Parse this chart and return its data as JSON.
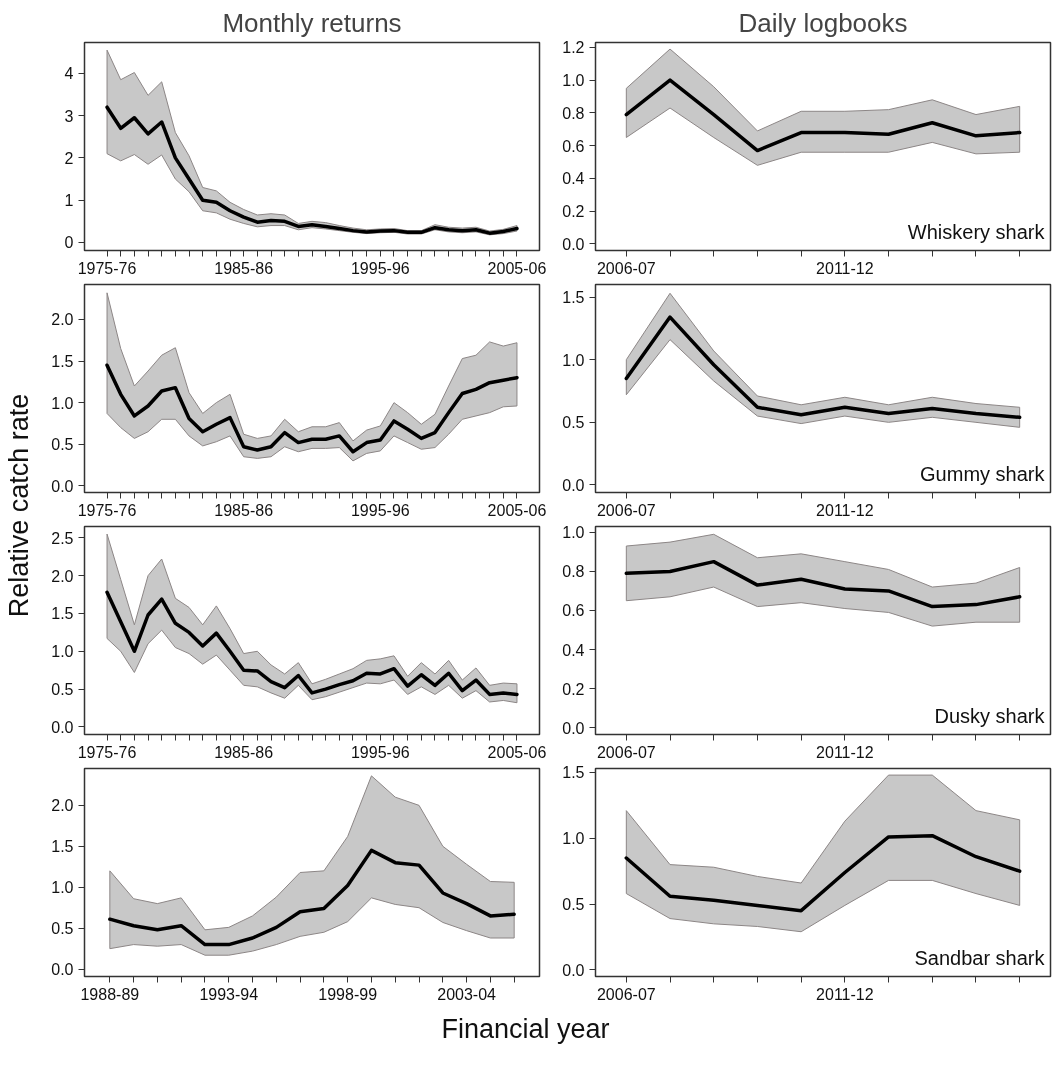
{
  "chart_data": [
    {
      "type": "line",
      "title": "Monthly returns",
      "categories": [
        "1975-76",
        null,
        null,
        null,
        null,
        null,
        null,
        null,
        null,
        null,
        "1985-86",
        null,
        null,
        null,
        null,
        null,
        null,
        null,
        null,
        null,
        "1995-96",
        null,
        null,
        null,
        null,
        null,
        null,
        null,
        null,
        null,
        "2005-06"
      ],
      "ylim": [
        -0.19,
        4.73
      ],
      "yticks": [
        0,
        1,
        2,
        3,
        4
      ],
      "series": [
        {
          "color": "#000000",
          "values": [
            3.2,
            2.7,
            2.95,
            2.57,
            2.85,
            2.0,
            1.5,
            1.0,
            0.95,
            0.75,
            0.6,
            0.48,
            0.52,
            0.5,
            0.38,
            0.42,
            0.38,
            0.33,
            0.28,
            0.25,
            0.27,
            0.28,
            0.24,
            0.24,
            0.35,
            0.3,
            0.28,
            0.3,
            0.22,
            0.26,
            0.33
          ],
          "upper": [
            4.55,
            3.85,
            4.02,
            3.48,
            3.8,
            2.6,
            2.05,
            1.3,
            1.22,
            0.95,
            0.78,
            0.65,
            0.68,
            0.65,
            0.45,
            0.5,
            0.47,
            0.4,
            0.34,
            0.3,
            0.32,
            0.33,
            0.28,
            0.28,
            0.42,
            0.36,
            0.34,
            0.36,
            0.27,
            0.31,
            0.4
          ],
          "lower": [
            2.1,
            1.93,
            2.08,
            1.85,
            2.07,
            1.5,
            1.2,
            0.75,
            0.7,
            0.55,
            0.45,
            0.37,
            0.4,
            0.4,
            0.3,
            0.35,
            0.32,
            0.28,
            0.24,
            0.21,
            0.23,
            0.24,
            0.2,
            0.2,
            0.3,
            0.25,
            0.23,
            0.25,
            0.18,
            0.21,
            0.27
          ]
        }
      ]
    },
    {
      "type": "line",
      "title": "Daily logbooks",
      "annotations": [
        "Whiskery shark"
      ],
      "categories": [
        "2006-07",
        null,
        null,
        null,
        null,
        "2011-12",
        null,
        null,
        null,
        null
      ],
      "ylim": [
        -0.04,
        1.23
      ],
      "yticks": [
        {
          "value": 0,
          "label": "0.0"
        },
        0.2,
        0.4,
        0.6,
        0.8,
        {
          "value": 1,
          "label": "1.0"
        },
        1.2
      ],
      "series": [
        {
          "color": "#000000",
          "values": [
            0.79,
            1.0,
            0.79,
            0.57,
            0.68,
            0.68,
            0.67,
            0.74,
            0.66,
            0.68
          ],
          "upper": [
            0.95,
            1.19,
            0.96,
            0.69,
            0.81,
            0.81,
            0.82,
            0.88,
            0.79,
            0.84
          ],
          "lower": [
            0.65,
            0.83,
            0.65,
            0.48,
            0.56,
            0.56,
            0.56,
            0.62,
            0.55,
            0.56
          ]
        }
      ]
    },
    {
      "type": "line",
      "ylabel": "Relative catch rate",
      "categories": [
        "1975-76",
        null,
        null,
        null,
        null,
        null,
        null,
        null,
        null,
        null,
        "1985-86",
        null,
        null,
        null,
        null,
        null,
        null,
        null,
        null,
        null,
        "1995-96",
        null,
        null,
        null,
        null,
        null,
        null,
        null,
        null,
        null,
        "2005-06"
      ],
      "ylim": [
        -0.08,
        2.42
      ],
      "yticks": [
        {
          "value": 0,
          "label": "0.0"
        },
        0.5,
        {
          "value": 1,
          "label": "1.0"
        },
        1.5,
        {
          "value": 2,
          "label": "2.0"
        }
      ],
      "series": [
        {
          "color": "#000000",
          "values": [
            1.45,
            1.1,
            0.84,
            0.96,
            1.14,
            1.18,
            0.81,
            0.65,
            0.74,
            0.82,
            0.47,
            0.43,
            0.47,
            0.64,
            0.52,
            0.56,
            0.56,
            0.6,
            0.41,
            0.52,
            0.55,
            0.78,
            0.68,
            0.57,
            0.64,
            0.88,
            1.11,
            1.16,
            1.24,
            1.27,
            1.3
          ],
          "upper": [
            2.32,
            1.65,
            1.2,
            1.38,
            1.57,
            1.66,
            1.12,
            0.87,
            1.0,
            1.1,
            0.62,
            0.57,
            0.6,
            0.8,
            0.65,
            0.71,
            0.71,
            0.76,
            0.54,
            0.67,
            0.72,
            1.0,
            0.88,
            0.74,
            0.86,
            1.2,
            1.53,
            1.57,
            1.73,
            1.68,
            1.72
          ],
          "lower": [
            0.87,
            0.7,
            0.57,
            0.65,
            0.8,
            0.8,
            0.6,
            0.48,
            0.53,
            0.6,
            0.35,
            0.33,
            0.35,
            0.47,
            0.41,
            0.45,
            0.45,
            0.46,
            0.3,
            0.39,
            0.42,
            0.6,
            0.52,
            0.44,
            0.46,
            0.62,
            0.8,
            0.84,
            0.88,
            0.95,
            0.96
          ]
        }
      ]
    },
    {
      "type": "line",
      "annotations": [
        "Gummy shark"
      ],
      "categories": [
        "2006-07",
        null,
        null,
        null,
        null,
        "2011-12",
        null,
        null,
        null,
        null
      ],
      "ylim": [
        -0.06,
        1.6
      ],
      "yticks": [
        {
          "value": 0,
          "label": "0.0"
        },
        0.5,
        {
          "value": 1,
          "label": "1.0"
        },
        1.5
      ],
      "series": [
        {
          "color": "#000000",
          "values": [
            0.85,
            1.34,
            0.96,
            0.62,
            0.56,
            0.62,
            0.57,
            0.61,
            0.57,
            0.54
          ],
          "upper": [
            1.0,
            1.53,
            1.07,
            0.71,
            0.64,
            0.7,
            0.64,
            0.7,
            0.65,
            0.62
          ],
          "lower": [
            0.72,
            1.16,
            0.83,
            0.55,
            0.49,
            0.55,
            0.5,
            0.54,
            0.5,
            0.46
          ]
        }
      ]
    },
    {
      "type": "line",
      "categories": [
        "1975-76",
        null,
        null,
        null,
        null,
        null,
        null,
        null,
        null,
        null,
        "1985-86",
        null,
        null,
        null,
        null,
        null,
        null,
        null,
        null,
        null,
        "1995-96",
        null,
        null,
        null,
        null,
        null,
        null,
        null,
        null,
        null,
        "2005-06"
      ],
      "ylim": [
        -0.1,
        2.65
      ],
      "yticks": [
        {
          "value": 0,
          "label": "0.0"
        },
        0.5,
        {
          "value": 1,
          "label": "1.0"
        },
        1.5,
        {
          "value": 2,
          "label": "2.0"
        },
        2.5
      ],
      "series": [
        {
          "color": "#000000",
          "values": [
            1.78,
            1.39,
            1.0,
            1.48,
            1.69,
            1.37,
            1.25,
            1.07,
            1.24,
            1.0,
            0.75,
            0.74,
            0.6,
            0.52,
            0.68,
            0.45,
            0.5,
            0.56,
            0.61,
            0.71,
            0.7,
            0.77,
            0.54,
            0.69,
            0.55,
            0.71,
            0.48,
            0.62,
            0.43,
            0.45,
            0.43
          ],
          "upper": [
            2.55,
            1.95,
            1.35,
            2.0,
            2.22,
            1.7,
            1.58,
            1.35,
            1.6,
            1.3,
            0.97,
            1.0,
            0.82,
            0.7,
            0.85,
            0.57,
            0.63,
            0.7,
            0.77,
            0.88,
            0.9,
            0.94,
            0.67,
            0.85,
            0.7,
            0.88,
            0.62,
            0.78,
            0.55,
            0.58,
            0.57
          ],
          "lower": [
            1.17,
            1.0,
            0.72,
            1.1,
            1.28,
            1.05,
            0.97,
            0.83,
            0.95,
            0.75,
            0.55,
            0.53,
            0.45,
            0.38,
            0.55,
            0.36,
            0.4,
            0.46,
            0.52,
            0.58,
            0.57,
            0.62,
            0.43,
            0.53,
            0.43,
            0.55,
            0.38,
            0.48,
            0.33,
            0.35,
            0.32
          ]
        }
      ]
    },
    {
      "type": "line",
      "annotations": [
        "Dusky shark"
      ],
      "categories": [
        "2006-07",
        null,
        null,
        null,
        null,
        "2011-12",
        null,
        null,
        null,
        null
      ],
      "ylim": [
        -0.035,
        1.03
      ],
      "yticks": [
        {
          "value": 0,
          "label": "0.0"
        },
        0.2,
        0.4,
        0.6,
        0.8,
        {
          "value": 1,
          "label": "1.0"
        }
      ],
      "series": [
        {
          "color": "#000000",
          "values": [
            0.79,
            0.8,
            0.85,
            0.73,
            0.76,
            0.71,
            0.7,
            0.62,
            0.63,
            0.67
          ],
          "upper": [
            0.93,
            0.95,
            0.99,
            0.87,
            0.89,
            0.85,
            0.81,
            0.72,
            0.74,
            0.82
          ],
          "lower": [
            0.65,
            0.67,
            0.72,
            0.62,
            0.64,
            0.61,
            0.59,
            0.52,
            0.54,
            0.54
          ]
        }
      ]
    },
    {
      "type": "line",
      "xlabel": "Financial year",
      "categories": [
        "1988-89",
        null,
        null,
        null,
        null,
        "1993-94",
        null,
        null,
        null,
        null,
        "1998-99",
        null,
        null,
        null,
        null,
        "2003-04",
        null,
        null
      ],
      "ylim": [
        -0.09,
        2.45
      ],
      "yticks": [
        {
          "value": 0,
          "label": "0.0"
        },
        0.5,
        {
          "value": 1,
          "label": "1.0"
        },
        1.5,
        {
          "value": 2,
          "label": "2.0"
        }
      ],
      "series": [
        {
          "color": "#000000",
          "values": [
            0.61,
            0.53,
            0.48,
            0.53,
            0.3,
            0.3,
            0.38,
            0.51,
            0.7,
            0.74,
            1.02,
            1.45,
            1.3,
            1.27,
            0.93,
            0.8,
            0.65,
            0.67
          ],
          "upper": [
            1.2,
            0.86,
            0.8,
            0.87,
            0.48,
            0.51,
            0.65,
            0.88,
            1.18,
            1.2,
            1.62,
            2.36,
            2.1,
            2.0,
            1.5,
            1.28,
            1.07,
            1.06
          ],
          "lower": [
            0.25,
            0.3,
            0.28,
            0.3,
            0.17,
            0.17,
            0.22,
            0.3,
            0.4,
            0.45,
            0.58,
            0.87,
            0.79,
            0.75,
            0.57,
            0.47,
            0.38,
            0.38
          ]
        }
      ]
    },
    {
      "type": "line",
      "annotations": [
        "Sandbar shark"
      ],
      "categories": [
        "2006-07",
        null,
        null,
        null,
        null,
        "2011-12",
        null,
        null,
        null,
        null
      ],
      "ylim": [
        -0.05,
        1.53
      ],
      "yticks": [
        {
          "value": 0,
          "label": "0.0"
        },
        0.5,
        {
          "value": 1,
          "label": "1.0"
        },
        1.5
      ],
      "series": [
        {
          "color": "#000000",
          "values": [
            0.85,
            0.56,
            0.53,
            0.49,
            0.45,
            0.74,
            1.01,
            1.02,
            0.86,
            0.75
          ],
          "upper": [
            1.21,
            0.8,
            0.78,
            0.71,
            0.66,
            1.13,
            1.48,
            1.48,
            1.21,
            1.14
          ],
          "lower": [
            0.58,
            0.39,
            0.35,
            0.33,
            0.29,
            0.49,
            0.68,
            0.68,
            0.58,
            0.49
          ]
        }
      ]
    }
  ]
}
